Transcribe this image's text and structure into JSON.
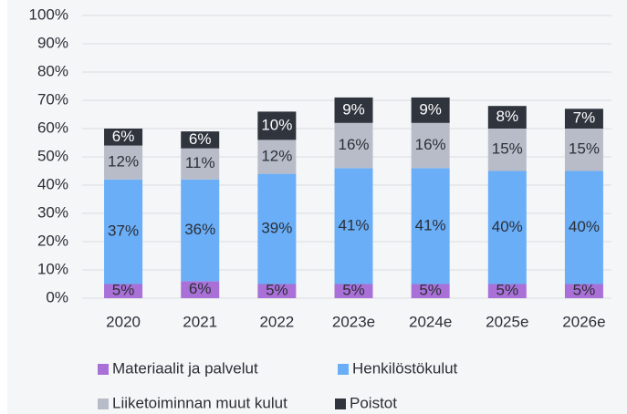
{
  "chart_data": {
    "type": "stacked_bar",
    "categories": [
      "2020",
      "2021",
      "2022",
      "2023e",
      "2024e",
      "2025e",
      "2026e"
    ],
    "series": [
      {
        "name": "Materiaalit ja palvelut",
        "color": "#a970d8",
        "values": [
          5,
          6,
          5,
          5,
          5,
          5,
          5
        ],
        "value_labels": [
          "5%",
          "6%",
          "5%",
          "5%",
          "5%",
          "5%",
          "5%"
        ]
      },
      {
        "name": "Henkilöstökulut",
        "color": "#6aaef8",
        "values": [
          37,
          36,
          39,
          41,
          41,
          40,
          40
        ],
        "value_labels": [
          "37%",
          "36%",
          "39%",
          "41%",
          "41%",
          "40%",
          "40%"
        ]
      },
      {
        "name": "Liiketoiminnan muut kulut",
        "color": "#b8bcc8",
        "values": [
          12,
          11,
          12,
          16,
          16,
          15,
          15
        ],
        "value_labels": [
          "12%",
          "11%",
          "12%",
          "16%",
          "16%",
          "15%",
          "15%"
        ]
      },
      {
        "name": "Poistot",
        "color": "#2f343d",
        "values": [
          6,
          6,
          10,
          9,
          9,
          8,
          7
        ],
        "value_labels": [
          "6%",
          "6%",
          "10%",
          "9%",
          "9%",
          "8%",
          "7%"
        ]
      }
    ],
    "ylim": [
      0,
      100
    ],
    "yticks": [
      {
        "value": 0,
        "label": "0%"
      },
      {
        "value": 10,
        "label": "10%"
      },
      {
        "value": 20,
        "label": "20%"
      },
      {
        "value": 30,
        "label": "30%"
      },
      {
        "value": 40,
        "label": "40%"
      },
      {
        "value": 50,
        "label": "50%"
      },
      {
        "value": 60,
        "label": "60%"
      },
      {
        "value": 70,
        "label": "70%"
      },
      {
        "value": 80,
        "label": "80%"
      },
      {
        "value": 90,
        "label": "90%"
      },
      {
        "value": 100,
        "label": "100%"
      }
    ],
    "grid": true,
    "legend": "bottom"
  }
}
